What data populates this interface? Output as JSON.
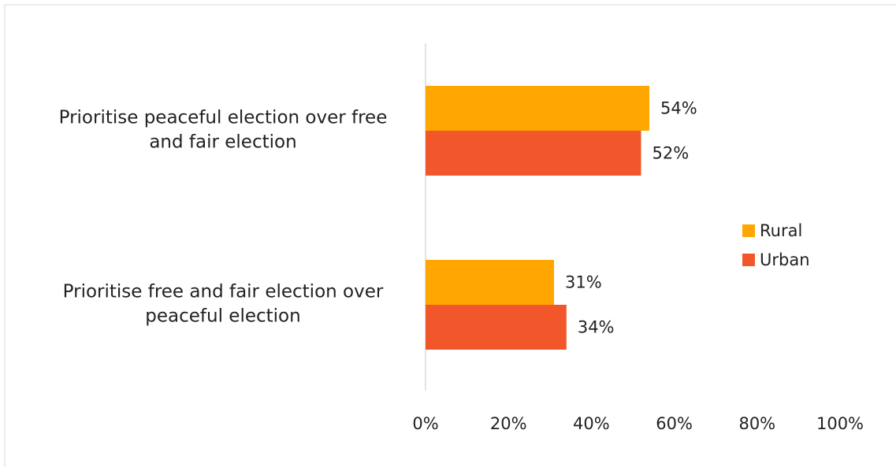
{
  "chart_data": {
    "type": "bar",
    "orientation": "horizontal",
    "categories": [
      [
        "Prioritise peaceful election over free",
        "and fair election"
      ],
      [
        "Prioritise free and fair election over",
        "peaceful election"
      ]
    ],
    "series": [
      {
        "name": "Rural",
        "color": "#FFA600",
        "values": [
          54,
          31
        ],
        "labels": [
          "54%",
          "31%"
        ]
      },
      {
        "name": "Urban",
        "color": "#F2572C",
        "values": [
          52,
          34
        ],
        "labels": [
          "52%",
          "34%"
        ]
      }
    ],
    "xlim": [
      0,
      100
    ],
    "x_ticks": [
      0,
      20,
      40,
      60,
      80,
      100
    ],
    "x_tick_labels": [
      "0%",
      "20%",
      "40%",
      "60%",
      "80%",
      "100%"
    ],
    "legend_position": "right",
    "grid": false
  }
}
